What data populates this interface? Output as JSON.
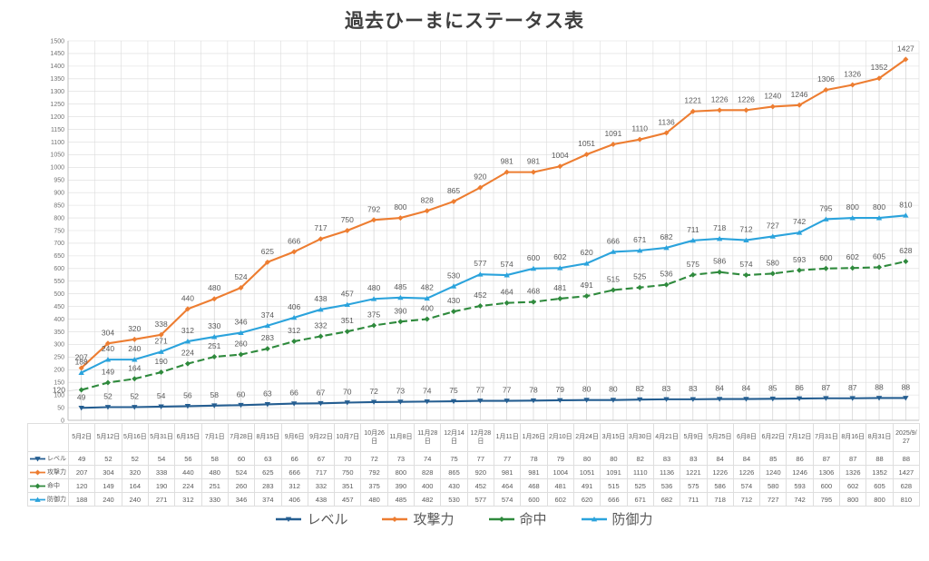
{
  "chart_data": {
    "type": "line",
    "title": "過去ひーまにステータス表",
    "xlabel": "",
    "ylabel": "",
    "ylim": [
      0,
      1500
    ],
    "ytick_step": 50,
    "grid": true,
    "legend_position": "bottom",
    "data_labels": true,
    "data_table_with_legend_keys": true,
    "categories": [
      "5月2日",
      "5月12日",
      "5月16日",
      "5月31日",
      "6月15日",
      "7月1日",
      "7月28日",
      "8月15日",
      "9月6日",
      "9月22日",
      "10月7日",
      "10月26日",
      "11月8日",
      "11月28日",
      "12月14日",
      "12月28日",
      "1月11日",
      "1月26日",
      "2月10日",
      "2月24日",
      "3月15日",
      "3月30日",
      "4月21日",
      "5月9日",
      "5月25日",
      "6月8日",
      "6月22日",
      "7月12日",
      "7月31日",
      "8月16日",
      "8月31日",
      "2025/9/27"
    ],
    "series": [
      {
        "name": "レベル",
        "key": "level",
        "color": "#255E91",
        "dash": false,
        "marker": "tri-down",
        "values": [
          49,
          52,
          52,
          54,
          56,
          58,
          60,
          63,
          66,
          67,
          70,
          72,
          73,
          74,
          75,
          77,
          77,
          78,
          79,
          80,
          80,
          82,
          83,
          83,
          84,
          84,
          85,
          86,
          87,
          87,
          88,
          88
        ]
      },
      {
        "name": "攻撃力",
        "key": "attack",
        "color": "#ED7D31",
        "dash": false,
        "marker": "diamond",
        "values": [
          207,
          304,
          320,
          338,
          440,
          480,
          524,
          625,
          666,
          717,
          750,
          792,
          800,
          828,
          865,
          920,
          981,
          981,
          1004,
          1051,
          1091,
          1110,
          1136,
          1221,
          1226,
          1226,
          1240,
          1246,
          1306,
          1326,
          1352,
          1427
        ]
      },
      {
        "name": "命中",
        "key": "hit",
        "color": "#2F8A3D",
        "dash": true,
        "marker": "diamond",
        "values": [
          120,
          149,
          164,
          190,
          224,
          251,
          260,
          283,
          312,
          332,
          351,
          375,
          390,
          400,
          430,
          452,
          464,
          468,
          481,
          491,
          515,
          525,
          536,
          575,
          586,
          574,
          580,
          593,
          600,
          602,
          605,
          628
        ]
      },
      {
        "name": "防御力",
        "key": "defense",
        "color": "#2BA3DC",
        "dash": false,
        "marker": "tri-up",
        "values": [
          188,
          240,
          240,
          271,
          312,
          330,
          346,
          374,
          406,
          438,
          457,
          480,
          485,
          482,
          530,
          577,
          574,
          600,
          602,
          620,
          666,
          671,
          682,
          711,
          718,
          712,
          727,
          742,
          795,
          800,
          800,
          810
        ]
      }
    ]
  },
  "colors": {
    "grid": "#dcdcdc",
    "axis_line": "#bfbfbf",
    "drop_line": "#c9c9c9",
    "axis_text": "#737373",
    "label_text": "#595959",
    "title_text": "#3f3f3f"
  }
}
